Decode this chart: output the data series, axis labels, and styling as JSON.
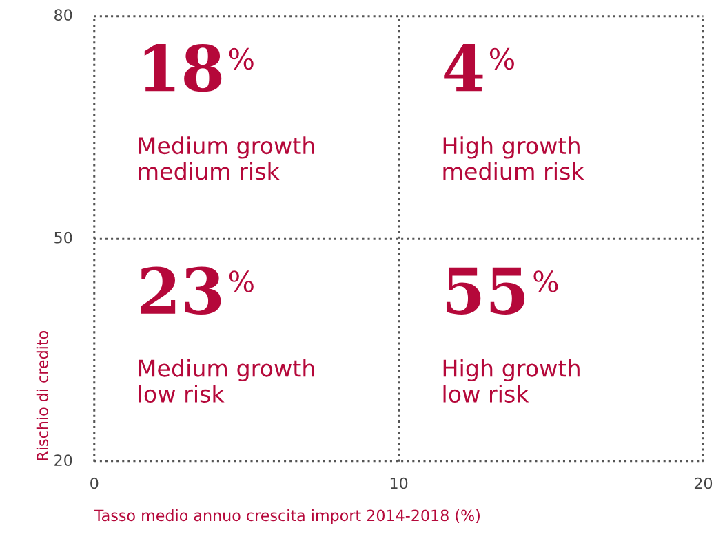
{
  "chart_data": {
    "type": "other",
    "xlabel": "Tasso medio annuo crescita import 2014-2018 (%)",
    "ylabel": "Rischio di credito",
    "categories": [
      "Medium growth\nmedium risk",
      "High growth\nmedium risk",
      "Medium growth\nlow risk",
      "High growth\nlow risk"
    ],
    "values": [
      18,
      4,
      23,
      55
    ],
    "value_labels": [
      "18%",
      "4%",
      "23%",
      "55%"
    ],
    "annotations": [
      "80",
      "50",
      "20",
      "0",
      "10",
      "20"
    ],
    "color": "#b5083a"
  }
}
